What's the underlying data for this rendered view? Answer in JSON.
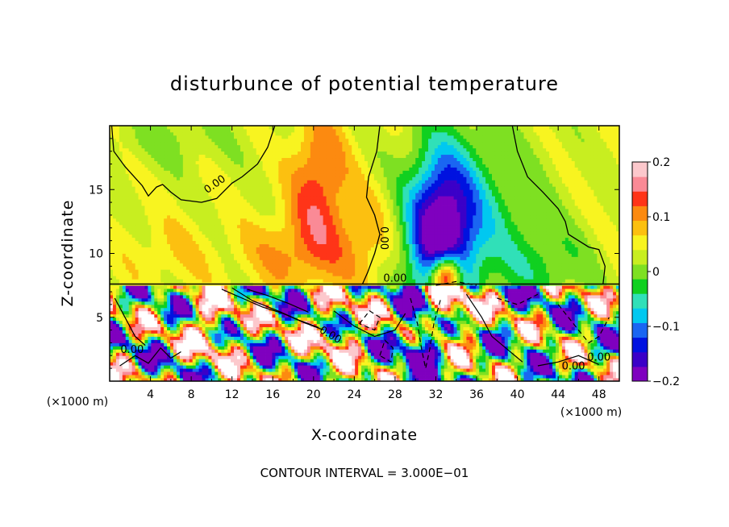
{
  "chart_data": {
    "type": "heatmap",
    "title": "disturbunce of potential temperature",
    "xlabel": "X-coordinate",
    "ylabel": "Z-coordinate",
    "x_unit": "(×1000 m)",
    "x_unit_right": "(×1000 m)",
    "xlim": [
      0,
      50
    ],
    "ylim": [
      0,
      20
    ],
    "x_ticks": [
      4,
      8,
      12,
      16,
      20,
      24,
      28,
      32,
      36,
      40,
      44,
      48
    ],
    "y_ticks": [
      5,
      10,
      15
    ],
    "colorbar": {
      "min": -0.2,
      "max": 0.2,
      "tick_labels": [
        "0.2",
        "0.1",
        "0",
        "−0.1",
        "−0.2"
      ],
      "tick_values": [
        0.2,
        0.1,
        0,
        -0.1,
        -0.2
      ]
    },
    "contour_labels": [
      "0.00",
      "0.00",
      "0.00",
      "0.00",
      "0.00",
      "0.00",
      "0.00"
    ],
    "contour_interval_text": "CONTOUR INTERVAL = 3.000E−01"
  },
  "colors": {
    "colormap": [
      "#7f00bf",
      "#3b00c8",
      "#0012e0",
      "#1a66f2",
      "#00c8f0",
      "#30e0b8",
      "#10d020",
      "#7ee022",
      "#c8ee20",
      "#f8f420",
      "#fcc010",
      "#fc8a10",
      "#ff3418",
      "#fa8a96",
      "#fcc8cc"
    ],
    "strong_positive": "#ffffff",
    "axis": "#000000"
  }
}
